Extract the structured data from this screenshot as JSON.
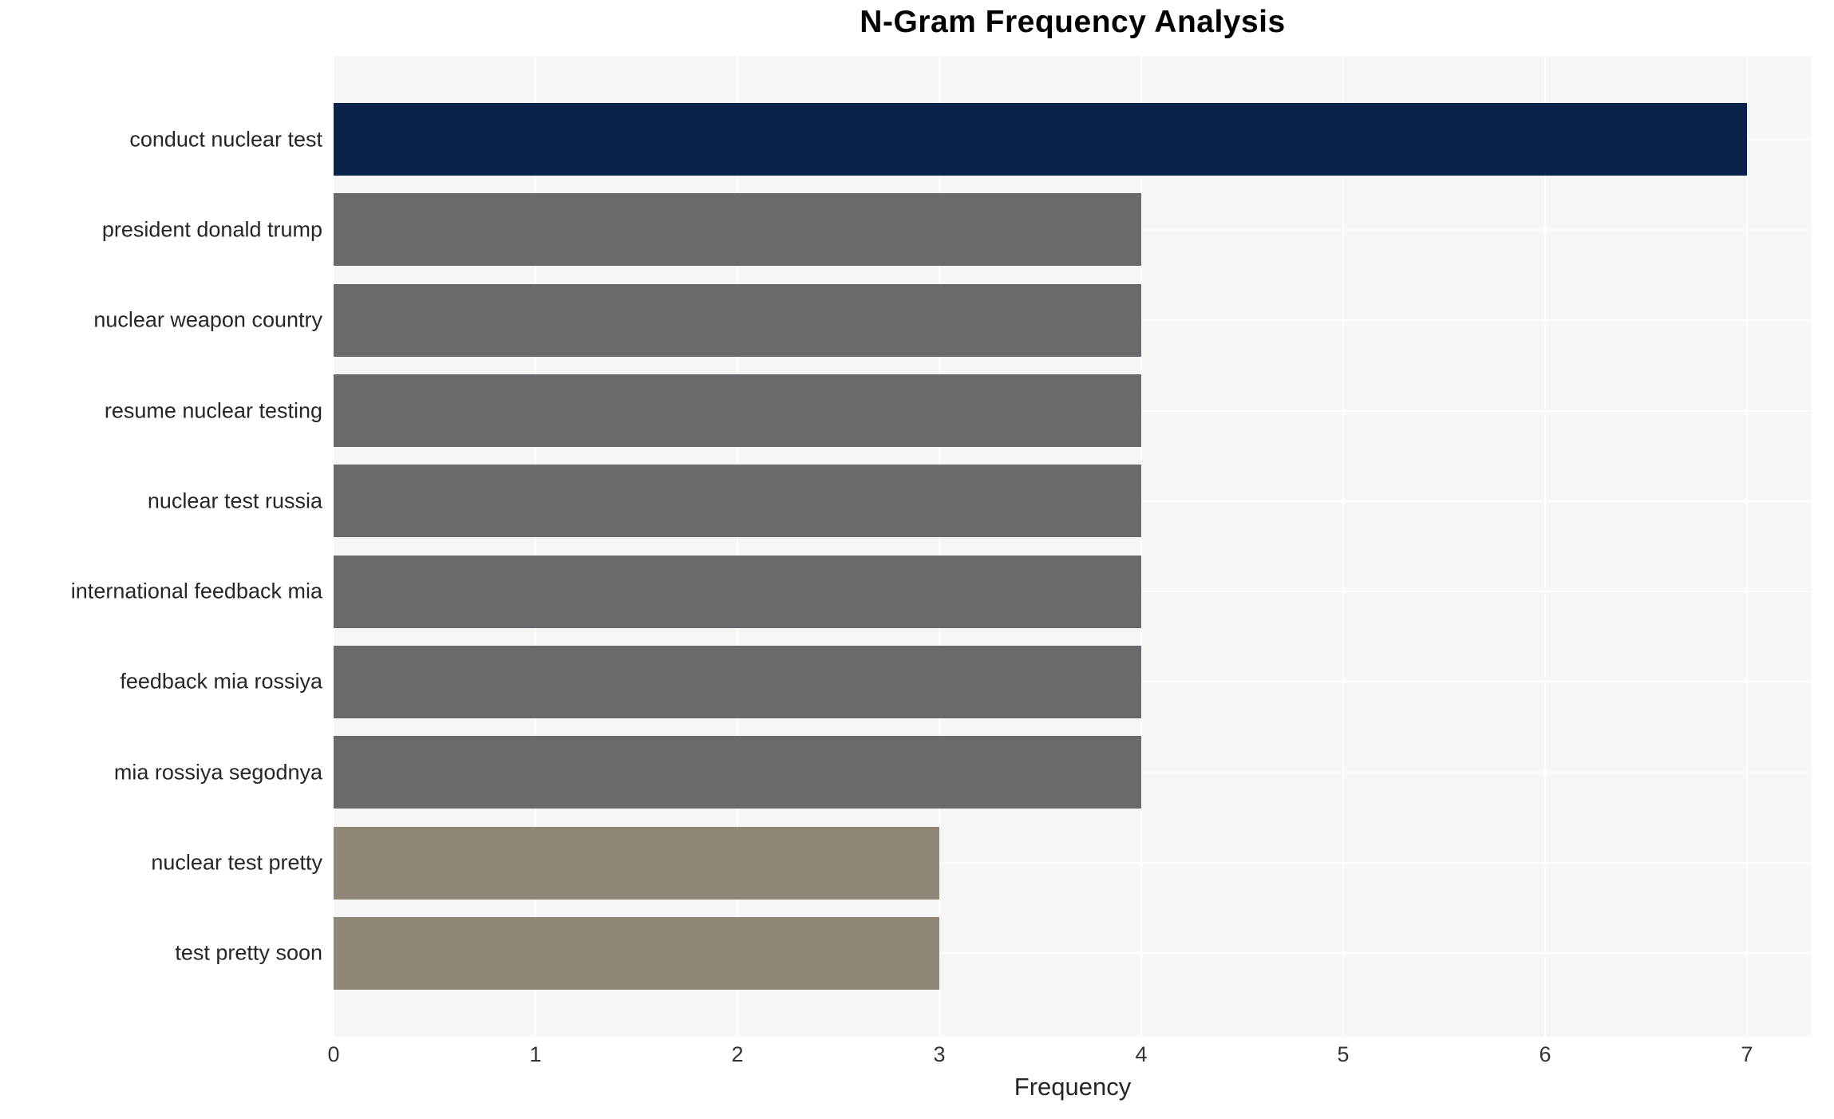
{
  "chart_data": {
    "type": "bar",
    "orientation": "horizontal",
    "title": "N-Gram Frequency Analysis",
    "xlabel": "Frequency",
    "ylabel": "",
    "categories": [
      "conduct nuclear test",
      "president donald trump",
      "nuclear weapon country",
      "resume nuclear testing",
      "nuclear test russia",
      "international feedback mia",
      "feedback mia rossiya",
      "mia rossiya segodnya",
      "nuclear test pretty",
      "test pretty soon"
    ],
    "values": [
      7,
      4,
      4,
      4,
      4,
      4,
      4,
      4,
      3,
      3
    ],
    "bar_colors": [
      "#09234a",
      "#6a6a6e",
      "#6a6a6e",
      "#6a6a6e",
      "#6a6a6e",
      "#6a6a6e",
      "#6a6a6e",
      "#6a6a6e",
      "#8f8878",
      "#8f8878"
    ],
    "x_ticks": [
      0,
      1,
      2,
      3,
      4,
      5,
      6,
      7
    ],
    "xlim": [
      0,
      7.32
    ],
    "legend": "none",
    "grid": {
      "panel_bg": "#f6f6f6",
      "grid_color": "#ffffff",
      "vertical_lines": "at integer x ticks",
      "horizontal_lines": "at category centers"
    }
  },
  "colors": {
    "accent_navy": "#09234a",
    "neutral_gray": "#6a6a6e",
    "tan": "#8f8878",
    "panel_bg": "#f6f6f6",
    "grid": "#ffffff",
    "text": "#262626",
    "title_text": "#000000"
  }
}
